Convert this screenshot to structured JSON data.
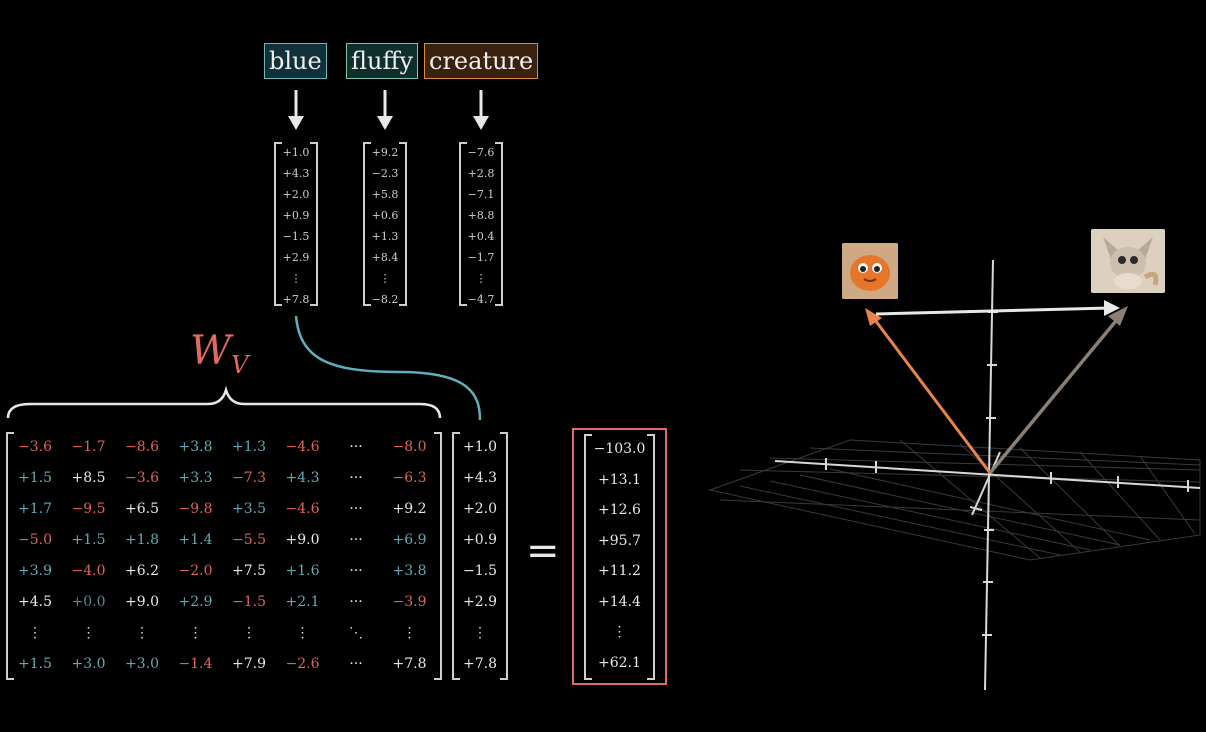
{
  "tokens": [
    {
      "text": "blue",
      "border": "#6fb3bd",
      "bg": "#10303a"
    },
    {
      "text": "fluffy",
      "border": "#7fc0a8",
      "bg": "#0f2f2c"
    },
    {
      "text": "creature",
      "border": "#d98a3a",
      "bg": "#3a220e"
    }
  ],
  "token_vectors": [
    [
      "+1.0",
      "+4.3",
      "+2.0",
      "+0.9",
      "−1.5",
      "+2.9",
      "⋮",
      "+7.8"
    ],
    [
      "+9.2",
      "−2.3",
      "+5.8",
      "+0.6",
      "+1.3",
      "+8.4",
      "⋮",
      "−8.2"
    ],
    [
      "−7.6",
      "+2.8",
      "−7.1",
      "+8.8",
      "+0.4",
      "−1.7",
      "⋮",
      "−4.7"
    ]
  ],
  "wv_label": {
    "main": "W",
    "sub": "V"
  },
  "matrix_rows": [
    [
      "−3.6",
      "−1.7",
      "−8.6",
      "+3.8",
      "+1.3",
      "−4.6",
      "···",
      "−8.0"
    ],
    [
      "+1.5",
      "+8.5",
      "−3.6",
      "+3.3",
      "−7.3",
      "+4.3",
      "···",
      "−6.3"
    ],
    [
      "+1.7",
      "−9.5",
      "+6.5",
      "−9.8",
      "+3.5",
      "−4.6",
      "···",
      "+9.2"
    ],
    [
      "−5.0",
      "+1.5",
      "+1.8",
      "+1.4",
      "−5.5",
      "+9.0",
      "···",
      "+6.9"
    ],
    [
      "+3.9",
      "−4.0",
      "+6.2",
      "−2.0",
      "+7.5",
      "+1.6",
      "···",
      "+3.8"
    ],
    [
      "+4.5",
      "+0.0",
      "+9.0",
      "+2.9",
      "−1.5",
      "+2.1",
      "···",
      "−3.9"
    ],
    [
      "⋮",
      "⋮",
      "⋮",
      "⋮",
      "⋮",
      "⋮",
      "⋱",
      "⋮"
    ],
    [
      "+1.5",
      "+3.0",
      "+3.0",
      "−1.4",
      "+7.9",
      "−2.6",
      "···",
      "+7.8"
    ]
  ],
  "matrix_colors": [
    [
      "neg",
      "neg",
      "neg",
      "blu",
      "blu",
      "neg",
      "pos",
      "neg"
    ],
    [
      "blu",
      "pos",
      "neg",
      "blu",
      "neg",
      "blu",
      "pos",
      "neg"
    ],
    [
      "blu",
      "neg",
      "pos",
      "neg",
      "blu",
      "neg",
      "pos",
      "pos"
    ],
    [
      "neg",
      "blu",
      "blu",
      "blu",
      "neg",
      "pos",
      "pos",
      "blu"
    ],
    [
      "blu",
      "neg",
      "pos",
      "neg",
      "pos",
      "blu",
      "pos",
      "blu"
    ],
    [
      "pos",
      "dim",
      "pos",
      "blu",
      "neg",
      "blu",
      "pos",
      "neg"
    ],
    [
      "pos",
      "pos",
      "pos",
      "pos",
      "pos",
      "pos",
      "pos",
      "pos"
    ],
    [
      "blu",
      "blu",
      "blu",
      "neg",
      "pos",
      "neg",
      "pos",
      "pos"
    ]
  ],
  "input_vector": [
    "+1.0",
    "+4.3",
    "+2.0",
    "+0.9",
    "−1.5",
    "+2.9",
    "⋮",
    "+7.8"
  ],
  "equals_sign": "=",
  "output_vector": [
    "−103.0",
    "+13.1",
    "+12.6",
    "+95.7",
    "+11.2",
    "+14.4",
    "⋮",
    "+62.1"
  ],
  "output_border_color": "#e06a6a",
  "images": [
    {
      "name": "orange-creature-image",
      "bg": "#c9a27a"
    },
    {
      "name": "fluffy-creature-image",
      "bg": "#d8c8b4"
    }
  ]
}
